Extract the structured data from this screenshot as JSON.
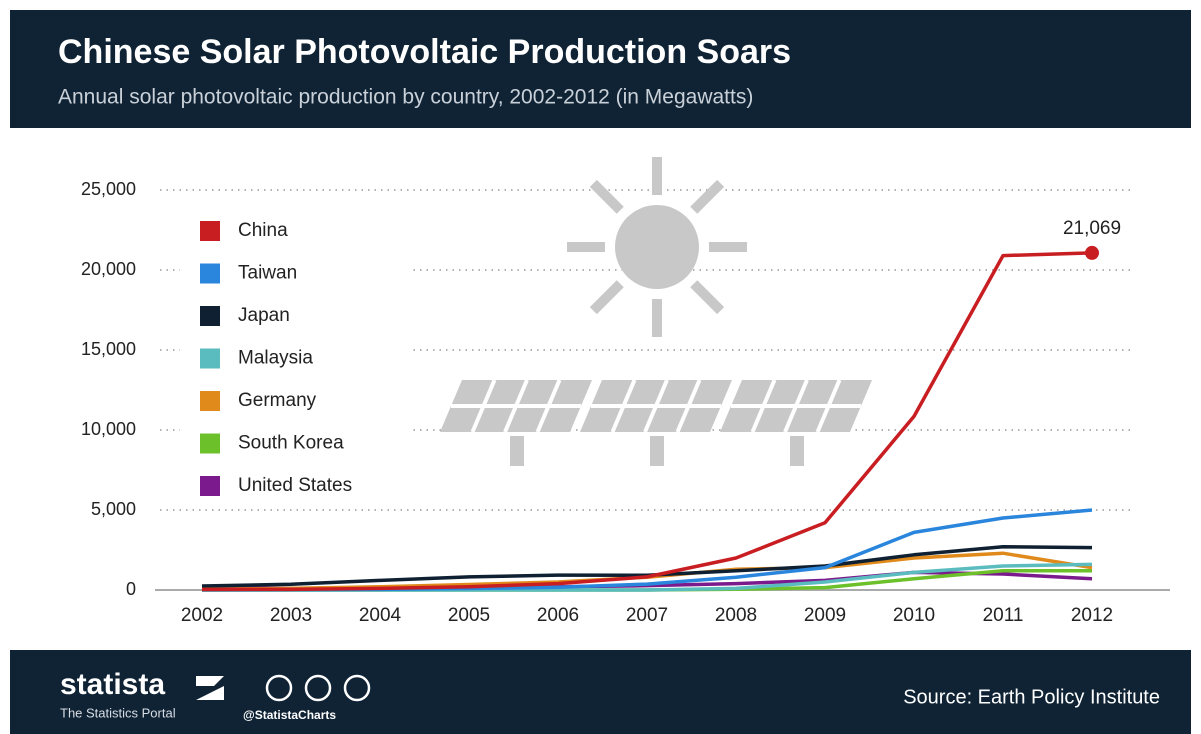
{
  "chart_data": {
    "type": "line",
    "title": "Chinese Solar Photovoltaic Production Soars",
    "subtitle": "Annual solar photovoltaic production by country, 2002-2012 (in Megawatts)",
    "categories": [
      "2002",
      "2003",
      "2004",
      "2005",
      "2006",
      "2007",
      "2008",
      "2009",
      "2010",
      "2011",
      "2012"
    ],
    "series": [
      {
        "name": "China",
        "color": "#c81e22",
        "values": [
          30,
          40,
          100,
          200,
          400,
          820,
          2000,
          4200,
          10850,
          20900,
          21069
        ],
        "value_labels": [
          null,
          null,
          null,
          null,
          null,
          null,
          null,
          null,
          null,
          null,
          "21,069"
        ]
      },
      {
        "name": "Taiwan",
        "color": "#2a85dc",
        "values": [
          10,
          20,
          40,
          90,
          170,
          370,
          800,
          1400,
          3600,
          4500,
          5000
        ]
      },
      {
        "name": "Japan",
        "color": "#0f2032",
        "values": [
          250,
          360,
          600,
          820,
          930,
          920,
          1200,
          1500,
          2200,
          2700,
          2650
        ]
      },
      {
        "name": "Malaysia",
        "color": "#5bbcbf",
        "values": [
          0,
          0,
          0,
          0,
          0,
          0,
          100,
          500,
          1100,
          1500,
          1600
        ]
      },
      {
        "name": "Germany",
        "color": "#e08a1c",
        "values": [
          50,
          100,
          200,
          340,
          500,
          800,
          1300,
          1400,
          2000,
          2300,
          1400
        ]
      },
      {
        "name": "South Korea",
        "color": "#6cc12a",
        "values": [
          0,
          0,
          0,
          0,
          0,
          0,
          50,
          150,
          700,
          1200,
          1200
        ]
      },
      {
        "name": "United States",
        "color": "#7b1a8c",
        "values": [
          120,
          100,
          140,
          150,
          200,
          270,
          400,
          600,
          1100,
          1000,
          700
        ]
      }
    ],
    "ylim": [
      0,
      25000
    ],
    "yticks": [
      0,
      {
        "value": 5000,
        "label": "5,000"
      },
      {
        "value": 10000,
        "label": "10,000"
      },
      {
        "value": 15000,
        "label": "15,000"
      },
      {
        "value": 20000,
        "label": "20,000"
      },
      {
        "value": 25000,
        "label": "25,000"
      }
    ],
    "grid": true
  },
  "footer": {
    "brand": "statista",
    "tagline": "The Statistics Portal",
    "handle": "@StatistaCharts",
    "source": "Source: Earth Policy Institute"
  }
}
